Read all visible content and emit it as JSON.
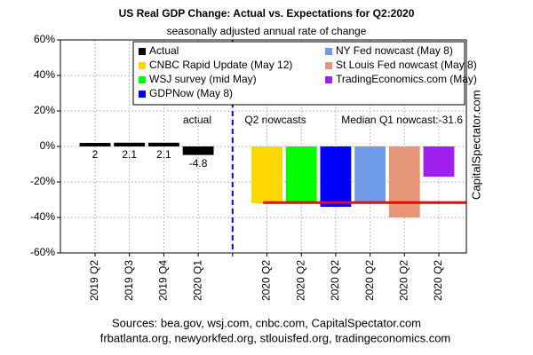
{
  "chart_data": {
    "type": "bar",
    "title": "US Real GDP Change: Actual vs. Expectations for Q2:2020",
    "subtitle": "seasonally adjusted annual rate of change",
    "categories": [
      "2019 Q2",
      "2019 Q3",
      "2019 Q4",
      "2020 Q1",
      null,
      "2020 Q2",
      "2020 Q2",
      "2020 Q2",
      "2020 Q2",
      "2020 Q2",
      "2020 Q2"
    ],
    "values": [
      2,
      2.1,
      2.1,
      -4.8,
      null,
      -32,
      -32,
      -34,
      -31,
      -40,
      -17
    ],
    "colors": [
      "#000000",
      "#000000",
      "#000000",
      "#000000",
      null,
      "#ffd700",
      "#00ff00",
      "#0000ff",
      "#6f9be8",
      "#e8967a",
      "#a020f0"
    ],
    "legend": [
      {
        "name": "Actual",
        "color": "#000000"
      },
      {
        "name": "CNBC Rapid Update (May 12)",
        "color": "#ffd700"
      },
      {
        "name": "WSJ survey (mid May)",
        "color": "#00ff00"
      },
      {
        "name": "GDPNow (May 8)",
        "color": "#0000ff"
      },
      {
        "name": "NY Fed nowcast (May 8)",
        "color": "#6f9be8"
      },
      {
        "name": "St Louis Fed nowcast (May 8)",
        "color": "#e8967a"
      },
      {
        "name": "TradingEconomics.com (May)",
        "color": "#a020f0"
      }
    ],
    "ylim": [
      -60,
      60
    ],
    "yticks": [
      {
        "value": -60,
        "label": "-60%"
      },
      {
        "value": -40,
        "label": "-40%"
      },
      {
        "value": -20,
        "label": "-20%"
      },
      {
        "value": 0,
        "label": "0%"
      },
      {
        "value": 20,
        "label": "20%"
      },
      {
        "value": 40,
        "label": "40%"
      },
      {
        "value": 60,
        "label": "60%"
      }
    ],
    "grid": true,
    "reference_line": {
      "value": -31.6,
      "label": "Median Q1 nowcast:-31.6",
      "color": "#ff0000"
    },
    "annotations": [
      "actual",
      "Q2 nowcasts"
    ],
    "watermark": "CapitalSpectator.com",
    "sources": [
      "Sources: bea.gov, wsj.com, cnbc.com, CapitalSpectator.com",
      "frbatlanta.org, newyorkfed.org, stlouisfed.org, tradingeconomics.com"
    ]
  }
}
